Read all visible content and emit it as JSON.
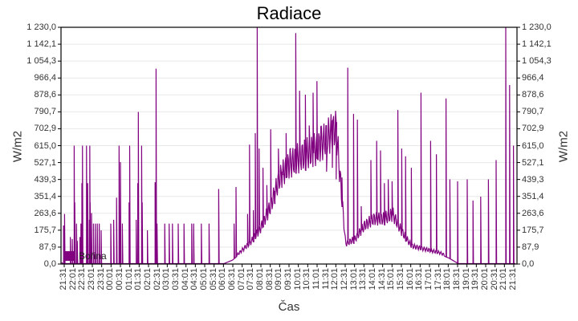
{
  "chart_data": {
    "type": "line",
    "title": "Radiace",
    "xlabel": "Čas",
    "ylabel": "W/m2",
    "ylabel_right": "W/m2",
    "ylim": [
      0,
      1230.0
    ],
    "grid": true,
    "legend_position": "bottom-left inside plot",
    "series": [
      {
        "name": "Bořina",
        "color": "#800080"
      }
    ],
    "y_ticks": [
      "0,0",
      "87,9",
      "175,7",
      "263,6",
      "351,4",
      "439,3",
      "527,1",
      "615,0",
      "702,9",
      "790,7",
      "878,6",
      "966,4",
      "1 054,3",
      "1 142,1",
      "1 230,0"
    ],
    "x_ticks": [
      "21:31",
      "22:01",
      "22:31",
      "23:01",
      "23:31",
      "00:01",
      "00:31",
      "01:01",
      "01:31",
      "02:01",
      "02:31",
      "03:01",
      "03:31",
      "04:01",
      "04:31",
      "05:01",
      "05:31",
      "06:01",
      "06:31",
      "07:01",
      "07:31",
      "08:01",
      "08:31",
      "09:01",
      "09:31",
      "10:01",
      "10:31",
      "11:01",
      "11:31",
      "12:01",
      "12:31",
      "13:01",
      "13:31",
      "14:01",
      "14:31",
      "15:01",
      "15:31",
      "16:01",
      "16:31",
      "17:01",
      "17:31",
      "18:01",
      "18:31",
      "19:01",
      "19:31",
      "20:01",
      "20:31",
      "21:01",
      "21:31"
    ],
    "baseline_envelope": {
      "x": [
        "21:31",
        "06:01",
        "06:31",
        "07:01",
        "07:31",
        "08:01",
        "08:31",
        "09:01",
        "09:31",
        "10:01",
        "10:31",
        "11:01",
        "11:31",
        "12:01",
        "12:31",
        "13:01",
        "13:31",
        "14:01",
        "14:31",
        "15:01",
        "15:31",
        "16:01",
        "16:31",
        "17:01",
        "17:31",
        "18:01",
        "18:31",
        "21:31"
      ],
      "y": [
        0,
        0,
        20,
        60,
        100,
        160,
        250,
        380,
        440,
        470,
        490,
        510,
        560,
        600,
        90,
        110,
        170,
        200,
        200,
        220,
        140,
        80,
        70,
        60,
        50,
        30,
        0,
        0
      ]
    },
    "spikes": [
      [
        0.5,
        200
      ],
      [
        1,
        260
      ],
      [
        4,
        140
      ],
      [
        5,
        130
      ],
      [
        6,
        615
      ],
      [
        6.3,
        320
      ],
      [
        7.2,
        210
      ],
      [
        7.6,
        120
      ],
      [
        9,
        140
      ],
      [
        9.5,
        210
      ],
      [
        10.3,
        615
      ],
      [
        10,
        420
      ],
      [
        12.4,
        615
      ],
      [
        12.6,
        320
      ],
      [
        13,
        420
      ],
      [
        14.1,
        615
      ],
      [
        13.9,
        230
      ],
      [
        14.3,
        320
      ],
      [
        15,
        265
      ],
      [
        16,
        210
      ],
      [
        17,
        210
      ],
      [
        18,
        210
      ],
      [
        19,
        210
      ],
      [
        20,
        175
      ],
      [
        25,
        210
      ],
      [
        26.5,
        230
      ],
      [
        28,
        345
      ],
      [
        29.3,
        615
      ],
      [
        30,
        530
      ],
      [
        31,
        210
      ],
      [
        34.8,
        615
      ],
      [
        34.5,
        320
      ],
      [
        38.2,
        230
      ],
      [
        39.3,
        790
      ],
      [
        39,
        420
      ],
      [
        41,
        615
      ],
      [
        41.3,
        320
      ],
      [
        44,
        175
      ],
      [
        48,
        425
      ],
      [
        48.5,
        1015
      ],
      [
        49,
        210
      ],
      [
        53,
        210
      ],
      [
        55.3,
        210
      ],
      [
        57,
        210
      ],
      [
        60,
        210
      ],
      [
        63,
        210
      ],
      [
        67,
        210
      ],
      [
        68,
        210
      ],
      [
        72,
        210
      ],
      [
        76,
        210
      ],
      [
        81,
        390
      ],
      [
        89,
        210
      ],
      [
        90,
        400
      ],
      [
        96,
        260
      ],
      [
        97,
        620
      ],
      [
        99,
        280
      ],
      [
        100,
        680
      ],
      [
        101,
        1230
      ],
      [
        102,
        600
      ],
      [
        104,
        500
      ],
      [
        106,
        410
      ],
      [
        108,
        700
      ],
      [
        110,
        380
      ],
      [
        112,
        600
      ],
      [
        114,
        480
      ],
      [
        116,
        680
      ],
      [
        118,
        540
      ],
      [
        121,
        1200
      ],
      [
        123,
        900
      ],
      [
        126,
        880
      ],
      [
        128,
        720
      ],
      [
        130,
        890
      ],
      [
        132,
        950
      ],
      [
        134,
        640
      ],
      [
        137,
        480
      ],
      [
        140,
        500
      ],
      [
        142,
        440
      ],
      [
        145,
        450
      ],
      [
        148,
        1020
      ],
      [
        151,
        780
      ],
      [
        153,
        750
      ],
      [
        155,
        300
      ],
      [
        160,
        540
      ],
      [
        163,
        640
      ],
      [
        165,
        590
      ],
      [
        167,
        420
      ],
      [
        169,
        440
      ],
      [
        171,
        430
      ],
      [
        174,
        800
      ],
      [
        176,
        600
      ],
      [
        178,
        560
      ],
      [
        181,
        500
      ],
      [
        186,
        890
      ],
      [
        191,
        640
      ],
      [
        194,
        570
      ],
      [
        199,
        860
      ],
      [
        201,
        440
      ],
      [
        205,
        430
      ],
      [
        210,
        440
      ],
      [
        213,
        330
      ],
      [
        217,
        350
      ],
      [
        221,
        440
      ],
      [
        225,
        540
      ],
      [
        230,
        1230
      ],
      [
        232,
        930
      ],
      [
        234,
        615
      ]
    ],
    "x_range_px_reference": "spike x values are indices on a 0..235 scale across the plot width"
  }
}
